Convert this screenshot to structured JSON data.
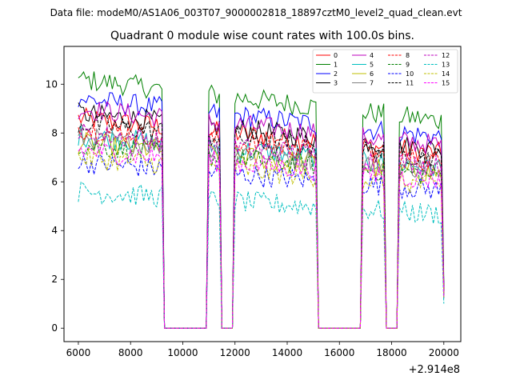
{
  "suptitle": "Data file: modeM0/AS1A06_003T07_9000002818_18897cztM0_level2_quad_clean.evt",
  "chart_data": {
    "type": "line",
    "title": "Quadrant 0 module wise count rates with 100.0s bins.",
    "xlabel": "",
    "ylabel": "",
    "x_offset_label": "+2.914e8",
    "xlim": [
      5450,
      20650
    ],
    "ylim": [
      -0.55,
      11.55
    ],
    "xticks": [
      6000,
      8000,
      10000,
      12000,
      14000,
      16000,
      18000,
      20000
    ],
    "yticks": [
      0,
      2,
      4,
      6,
      8,
      10
    ],
    "x_start": 6000,
    "x_step": 100,
    "legend_location": "top-right",
    "series": [
      {
        "name": "0",
        "color": "#ff0000",
        "dash": "solid",
        "level": 8.6
      },
      {
        "name": "1",
        "color": "#008000",
        "dash": "solid",
        "level": 10.2
      },
      {
        "name": "2",
        "color": "#0000ff",
        "dash": "solid",
        "level": 9.4
      },
      {
        "name": "3",
        "color": "#000000",
        "dash": "solid",
        "level": 8.8
      },
      {
        "name": "4",
        "color": "#bf00bf",
        "dash": "solid",
        "level": 9.0
      },
      {
        "name": "5",
        "color": "#00bfbf",
        "dash": "solid",
        "level": 7.9
      },
      {
        "name": "6",
        "color": "#bfbf00",
        "dash": "solid",
        "level": 7.6
      },
      {
        "name": "7",
        "color": "#808080",
        "dash": "solid",
        "level": 7.8
      },
      {
        "name": "8",
        "color": "#ff0000",
        "dash": "dashed",
        "level": 8.2
      },
      {
        "name": "9",
        "color": "#008000",
        "dash": "dashed",
        "level": 7.5
      },
      {
        "name": "10",
        "color": "#0000ff",
        "dash": "dashed",
        "level": 6.8
      },
      {
        "name": "11",
        "color": "#000000",
        "dash": "dashed",
        "level": 8.4
      },
      {
        "name": "12",
        "color": "#bf00bf",
        "dash": "dashed",
        "level": 8.0
      },
      {
        "name": "13",
        "color": "#00bfbf",
        "dash": "dashed",
        "level": 5.6
      },
      {
        "name": "14",
        "color": "#bfbf00",
        "dash": "dashed",
        "level": 7.0
      },
      {
        "name": "15",
        "color": "#ff00ff",
        "dash": "dashed",
        "level": 7.3
      }
    ],
    "segments": [
      {
        "start": 6000,
        "end": 9200,
        "on": true
      },
      {
        "start": 9300,
        "end": 10900,
        "on": false
      },
      {
        "start": 11000,
        "end": 11400,
        "on": true
      },
      {
        "start": 11500,
        "end": 11900,
        "on": false
      },
      {
        "start": 12000,
        "end": 15100,
        "on": true
      },
      {
        "start": 15200,
        "end": 16800,
        "on": false
      },
      {
        "start": 16900,
        "end": 17700,
        "on": true
      },
      {
        "start": 17800,
        "end": 18200,
        "on": false
      },
      {
        "start": 18300,
        "end": 20000,
        "on": true
      }
    ]
  }
}
